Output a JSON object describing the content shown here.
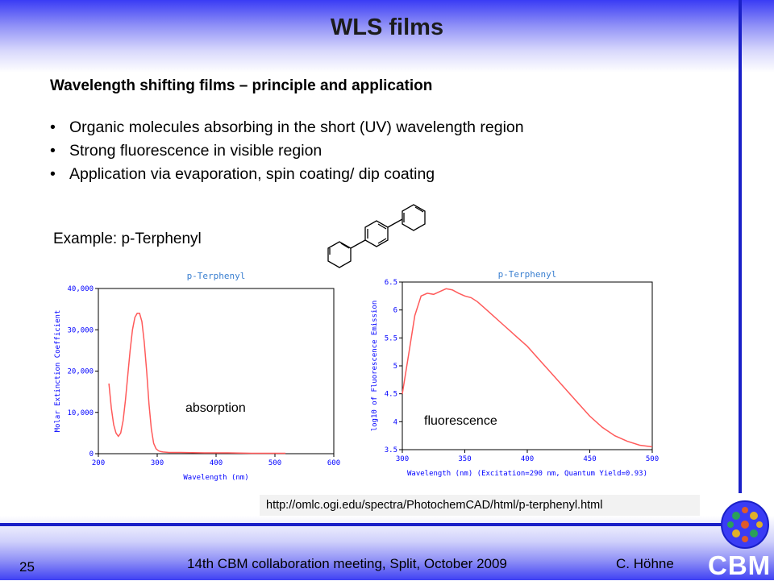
{
  "slide": {
    "title": "WLS films",
    "subtitle": "Wavelength shifting films – principle and application",
    "bullets": [
      "Organic molecules absorbing in the short (UV) wavelength region",
      "Strong fluorescence in visible region",
      "Application via evaporation, spin coating/ dip coating"
    ],
    "example": "Example: p-Terphenyl",
    "source_url": "http://omlc.ogi.edu/spectra/PhotochemCAD/html/p-terphenyl.html",
    "page_number": "25",
    "footer": "14th CBM collaboration meeting, Split, October 2009",
    "author": "C. Höhne",
    "logo_text": "CBM"
  },
  "colors": {
    "curve": "#ff5a5a",
    "chart_title": "#3a7fd0",
    "axis_text": "#0000ff",
    "rule": "#1a20c8"
  },
  "chart_data": [
    {
      "type": "line",
      "title": "p-Terphenyl",
      "xlabel": "Wavelength (nm)",
      "ylabel": "Molar Extinction Coefficient",
      "xlim": [
        200,
        600
      ],
      "ylim": [
        0,
        40000
      ],
      "xticks": [
        200,
        300,
        400,
        500,
        600
      ],
      "yticks": [
        0,
        10000,
        20000,
        30000,
        40000
      ],
      "ytick_labels": [
        "0",
        "10,000",
        "20,000",
        "30,000",
        "40,000"
      ],
      "annotation": "absorption",
      "series": [
        {
          "x": [
            218,
            222,
            226,
            230,
            234,
            238,
            242,
            246,
            250,
            254,
            258,
            262,
            266,
            270,
            274,
            278,
            282,
            286,
            290,
            294,
            298,
            302,
            306,
            310,
            320,
            340,
            380,
            420,
            460,
            500,
            518
          ],
          "y": [
            17000,
            11000,
            7000,
            5000,
            4200,
            5000,
            8000,
            13000,
            19000,
            25000,
            30000,
            33000,
            34000,
            34000,
            32000,
            27000,
            20000,
            12000,
            6000,
            2500,
            1200,
            700,
            500,
            400,
            300,
            300,
            200,
            200,
            100,
            100,
            100
          ]
        }
      ]
    },
    {
      "type": "line",
      "title": "p-Terphenyl",
      "xlabel": "Wavelength (nm) (Excitation=290 nm, Quantum Yield=0.93)",
      "ylabel": "log10 of Fluorescence Emission",
      "xlim": [
        300,
        500
      ],
      "ylim": [
        3.5,
        6.5
      ],
      "xticks": [
        300,
        350,
        400,
        450,
        500
      ],
      "yticks": [
        3.5,
        4,
        4.5,
        5,
        5.5,
        6,
        6.5
      ],
      "ytick_labels": [
        "3.5",
        "4",
        "4.5",
        "5",
        "5.5",
        "6",
        "6.5"
      ],
      "annotation": "fluorescence",
      "series": [
        {
          "x": [
            300,
            305,
            310,
            315,
            320,
            325,
            330,
            335,
            340,
            345,
            350,
            355,
            360,
            365,
            370,
            380,
            390,
            400,
            410,
            420,
            430,
            440,
            450,
            460,
            470,
            480,
            490,
            500
          ],
          "y": [
            4.5,
            5.2,
            5.9,
            6.25,
            6.3,
            6.28,
            6.33,
            6.38,
            6.36,
            6.3,
            6.25,
            6.22,
            6.15,
            6.05,
            5.95,
            5.75,
            5.55,
            5.35,
            5.1,
            4.85,
            4.6,
            4.35,
            4.1,
            3.9,
            3.75,
            3.65,
            3.58,
            3.55
          ]
        }
      ]
    }
  ]
}
